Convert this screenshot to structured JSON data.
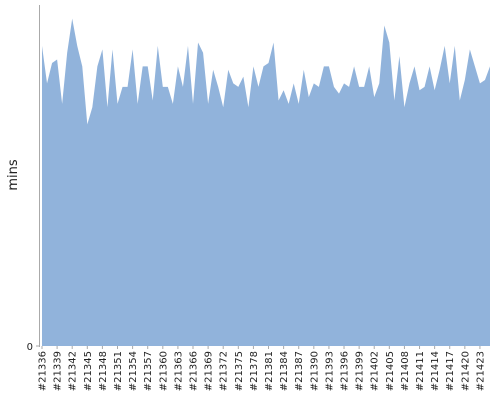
{
  "chart_data": {
    "type": "area",
    "y_label": "mins",
    "color": "#91b3db",
    "categories": [
      "#21336",
      null,
      null,
      "#21339",
      null,
      null,
      "#21342",
      null,
      null,
      "#21345",
      null,
      null,
      "#21348",
      null,
      null,
      "#21351",
      null,
      null,
      "#21354",
      null,
      null,
      "#21357",
      null,
      null,
      "#21360",
      null,
      null,
      "#21363",
      null,
      null,
      "#21366",
      null,
      null,
      "#21369",
      null,
      null,
      "#21372",
      null,
      null,
      "#21375",
      null,
      null,
      "#21378",
      null,
      null,
      "#21381",
      null,
      null,
      "#21384",
      null,
      null,
      "#21387",
      null,
      null,
      "#21390",
      null,
      null,
      "#21393",
      null,
      null,
      "#21396",
      null,
      null,
      "#21399",
      null,
      null,
      "#21402",
      null,
      null,
      "#21405",
      null,
      null,
      "#21408",
      null,
      null,
      "#21411",
      null,
      null,
      "#21414",
      null,
      null,
      "#21417",
      null,
      null,
      "#21420",
      null,
      null,
      "#21423",
      null,
      null
    ],
    "values": [
      88,
      77,
      83,
      84,
      71,
      86,
      96,
      88,
      82,
      65,
      70,
      82,
      87,
      70,
      87,
      71,
      76,
      76,
      87,
      71,
      82,
      82,
      72,
      88,
      76,
      76,
      71,
      82,
      76,
      88,
      71,
      89,
      86,
      71,
      81,
      76,
      70,
      81,
      77,
      76,
      79,
      70,
      82,
      76,
      82,
      83,
      89,
      72,
      75,
      71,
      77,
      71,
      81,
      73,
      77,
      76,
      82,
      82,
      76,
      74,
      77,
      76,
      82,
      76,
      76,
      82,
      73,
      77,
      94,
      89,
      72,
      85,
      70,
      77,
      82,
      75,
      76,
      82,
      75,
      81,
      88,
      77,
      88,
      72,
      78,
      87,
      82,
      77,
      78,
      82
    ],
    "ylim": [
      0,
      100
    ],
    "yticks": [
      0
    ]
  }
}
